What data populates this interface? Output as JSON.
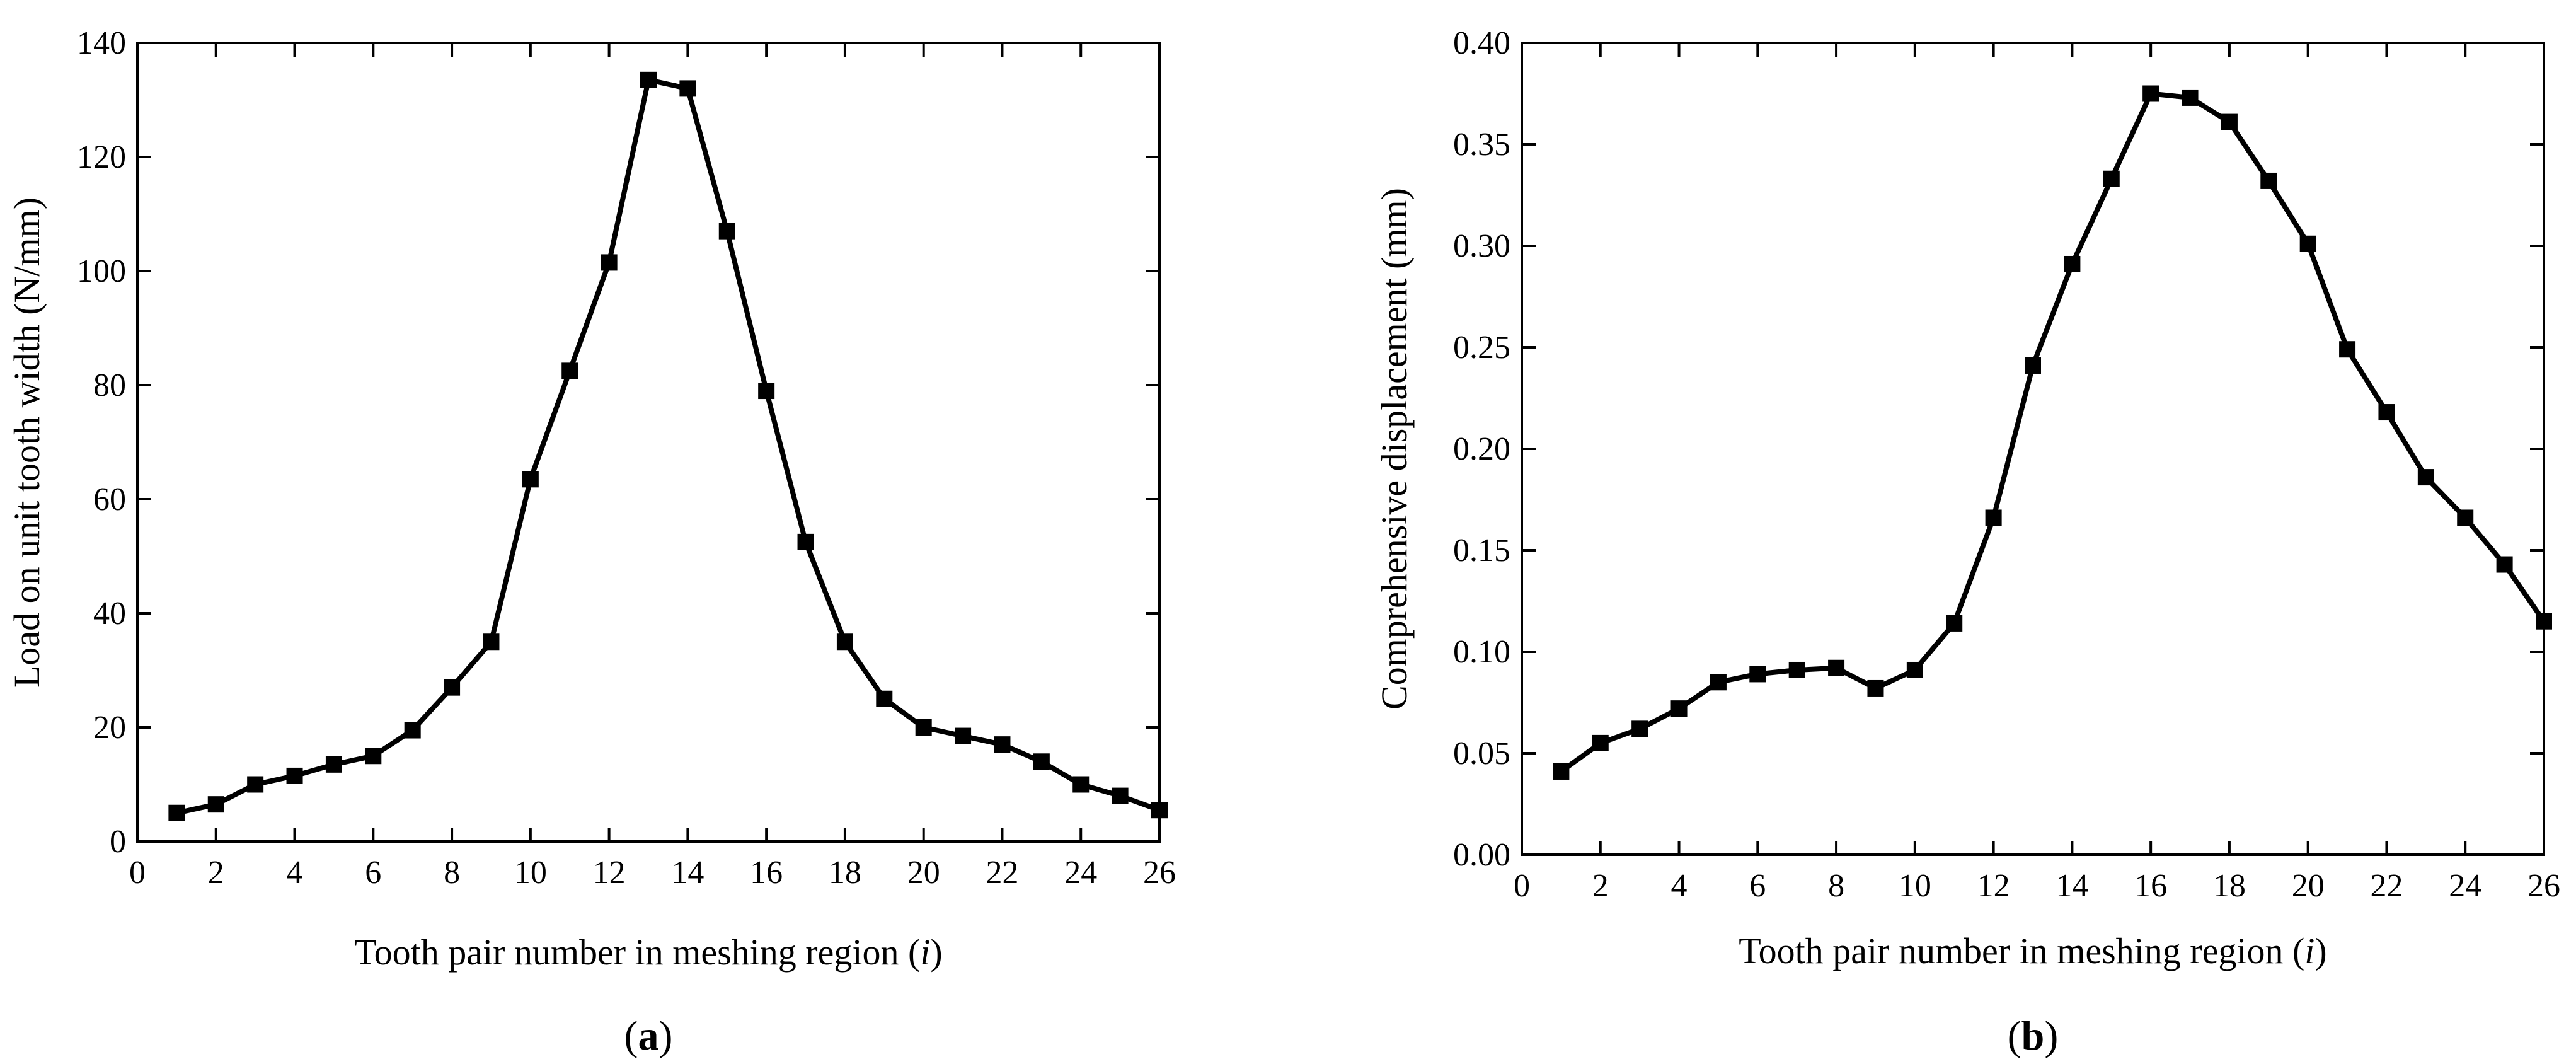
{
  "chart_data": [
    {
      "type": "line",
      "panel_label": "a",
      "title": "",
      "xlabel": "Tooth pair number in meshing region (",
      "xlabel_var": "i",
      "xlabel_end": ")",
      "ylabel": "Load on unit tooth width (N/mm)",
      "xlim": [
        0,
        26
      ],
      "ylim": [
        0,
        140
      ],
      "x_ticks": [
        "0",
        "2",
        "4",
        "6",
        "8",
        "10",
        "12",
        "14",
        "16",
        "18",
        "20",
        "22",
        "24",
        "26"
      ],
      "y_ticks": [
        "0",
        "20",
        "40",
        "60",
        "80",
        "100",
        "120",
        "140"
      ],
      "marker": "square",
      "series": [
        {
          "name": "Load",
          "x": [
            1,
            2,
            3,
            4,
            5,
            6,
            7,
            8,
            9,
            10,
            11,
            12,
            13,
            14,
            15,
            16,
            17,
            18,
            19,
            20,
            21,
            22,
            23,
            24,
            25,
            26
          ],
          "values": [
            5.0,
            6.5,
            10.0,
            11.5,
            13.5,
            15.0,
            19.5,
            27.0,
            35.0,
            63.5,
            82.5,
            101.5,
            133.5,
            132.0,
            107.0,
            79.0,
            52.5,
            35.0,
            25.0,
            20.0,
            18.5,
            17.0,
            14.0,
            10.0,
            8.0,
            5.5
          ]
        }
      ]
    },
    {
      "type": "line",
      "panel_label": "b",
      "title": "",
      "xlabel": "Tooth pair number in meshing region (",
      "xlabel_var": "i",
      "xlabel_end": ")",
      "ylabel": "Comprehensive displacement (mm)",
      "xlim": [
        0,
        26
      ],
      "ylim": [
        0,
        0.4
      ],
      "x_ticks": [
        "0",
        "2",
        "4",
        "6",
        "8",
        "10",
        "12",
        "14",
        "16",
        "18",
        "20",
        "22",
        "24",
        "26"
      ],
      "y_ticks": [
        "0.00",
        "0.05",
        "0.10",
        "0.15",
        "0.20",
        "0.25",
        "0.30",
        "0.35",
        "0.40"
      ],
      "marker": "square",
      "series": [
        {
          "name": "Displacement",
          "x": [
            1,
            2,
            3,
            4,
            5,
            6,
            7,
            8,
            9,
            10,
            11,
            12,
            13,
            14,
            15,
            16,
            17,
            18,
            19,
            20,
            21,
            22,
            23,
            24,
            25,
            26
          ],
          "values": [
            0.041,
            0.055,
            0.062,
            0.072,
            0.085,
            0.089,
            0.091,
            0.092,
            0.082,
            0.091,
            0.114,
            0.166,
            0.241,
            0.291,
            0.333,
            0.375,
            0.373,
            0.361,
            0.332,
            0.301,
            0.249,
            0.218,
            0.186,
            0.166,
            0.143,
            0.115
          ]
        }
      ]
    }
  ]
}
